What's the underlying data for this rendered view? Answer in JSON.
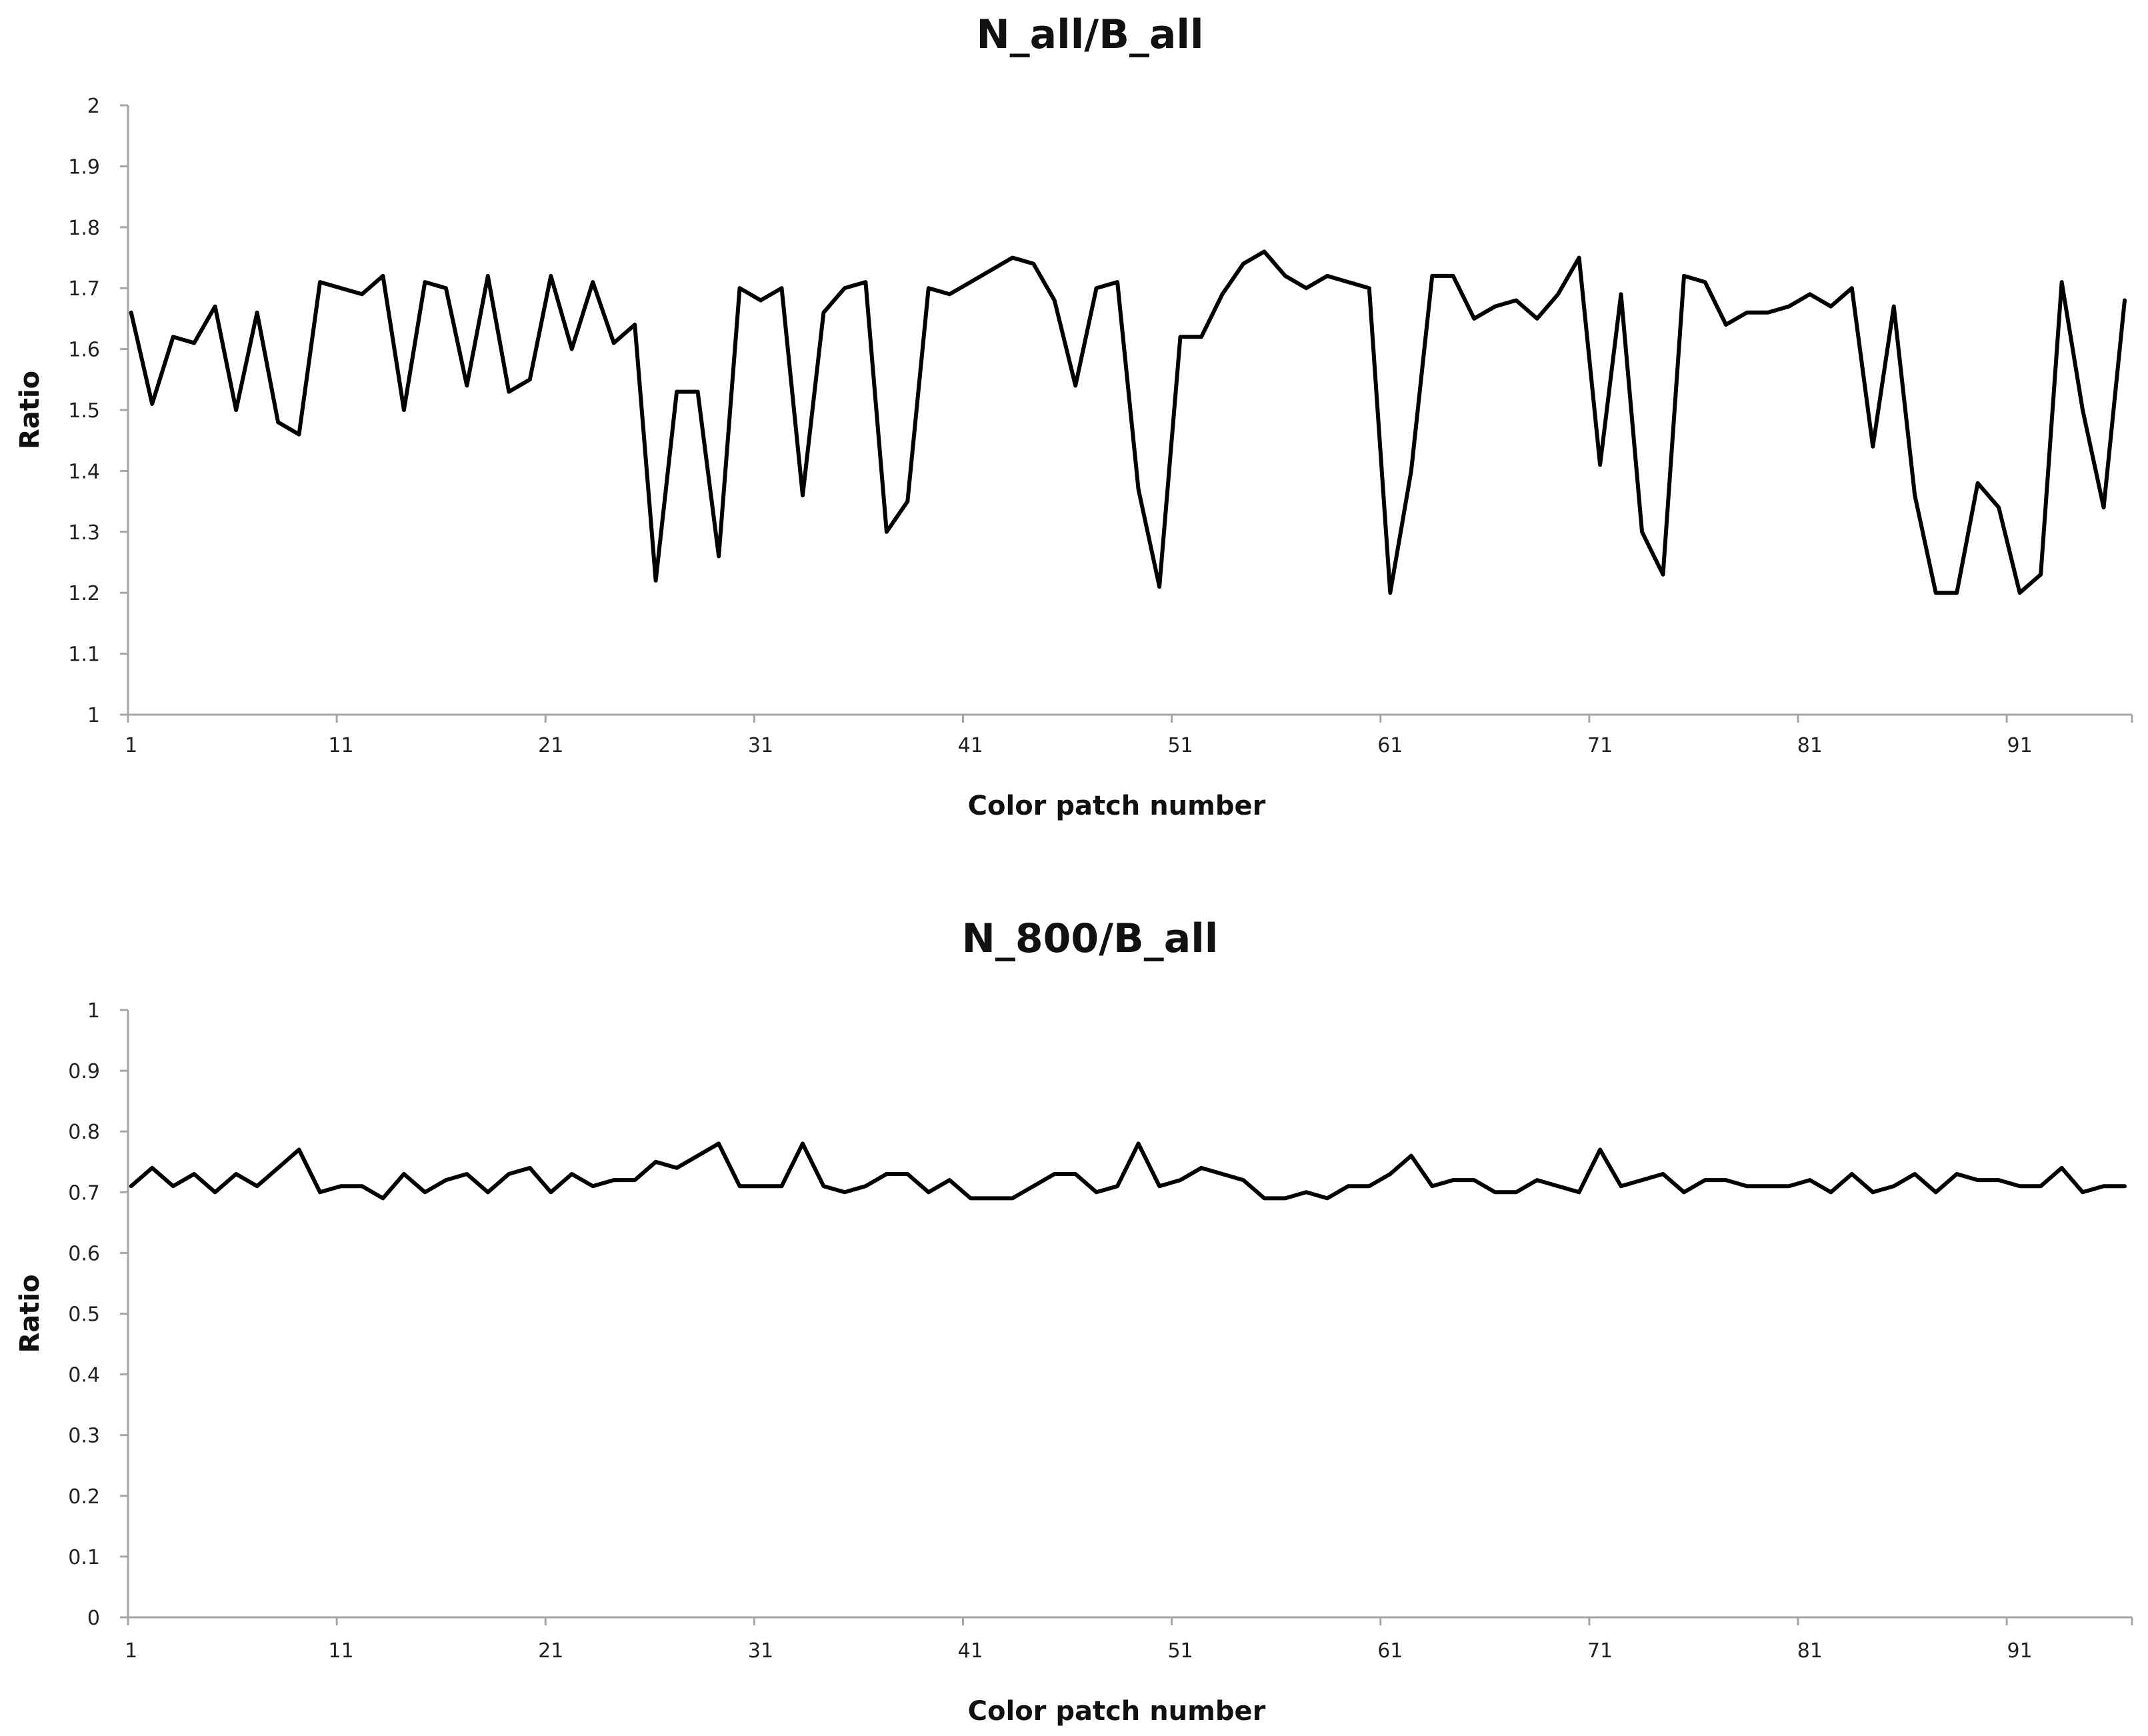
{
  "chart_data": [
    {
      "type": "line",
      "title": "N_all/B_all",
      "xlabel": "Color patch number",
      "ylabel": "Ratio",
      "ylim": [
        1,
        2
      ],
      "yticks": [
        "1",
        "1.1",
        "1.2",
        "1.3",
        "1.4",
        "1.5",
        "1.6",
        "1.7",
        "1.8",
        "1.9",
        "2"
      ],
      "xticks": [
        "1",
        "11",
        "21",
        "31",
        "41",
        "51",
        "61",
        "71",
        "81",
        "91"
      ],
      "grid": false,
      "line_color": "#000000",
      "x": [
        1,
        2,
        3,
        4,
        5,
        6,
        7,
        8,
        9,
        10,
        11,
        12,
        13,
        14,
        15,
        16,
        17,
        18,
        19,
        20,
        21,
        22,
        23,
        24,
        25,
        26,
        27,
        28,
        29,
        30,
        31,
        32,
        33,
        34,
        35,
        36,
        37,
        38,
        39,
        40,
        41,
        42,
        43,
        44,
        45,
        46,
        47,
        48,
        49,
        50,
        51,
        52,
        53,
        54,
        55,
        56,
        57,
        58,
        59,
        60,
        61,
        62,
        63,
        64,
        65,
        66,
        67,
        68,
        69,
        70,
        71,
        72,
        73,
        74,
        75,
        76,
        77,
        78,
        79,
        80,
        81,
        82,
        83,
        84,
        85,
        86,
        87,
        88,
        89,
        90,
        91,
        92,
        93,
        94,
        95,
        96
      ],
      "series": [
        {
          "values": [
            1.66,
            1.51,
            1.62,
            1.61,
            1.67,
            1.5,
            1.66,
            1.48,
            1.46,
            1.71,
            1.7,
            1.69,
            1.72,
            1.5,
            1.71,
            1.7,
            1.54,
            1.72,
            1.53,
            1.55,
            1.72,
            1.6,
            1.71,
            1.61,
            1.64,
            1.22,
            1.53,
            1.53,
            1.26,
            1.7,
            1.68,
            1.7,
            1.36,
            1.66,
            1.7,
            1.71,
            1.3,
            1.35,
            1.7,
            1.69,
            1.71,
            1.73,
            1.75,
            1.74,
            1.68,
            1.54,
            1.7,
            1.71,
            1.37,
            1.21,
            1.62,
            1.62,
            1.69,
            1.74,
            1.76,
            1.72,
            1.7,
            1.72,
            1.71,
            1.7,
            1.2,
            1.4,
            1.72,
            1.72,
            1.65,
            1.67,
            1.68,
            1.65,
            1.69,
            1.75,
            1.41,
            1.69,
            1.3,
            1.23,
            1.72,
            1.71,
            1.64,
            1.66,
            1.66,
            1.67,
            1.69,
            1.67,
            1.7,
            1.44,
            1.67,
            1.36,
            1.2,
            1.2,
            1.38,
            1.34,
            1.2,
            1.23,
            1.71,
            1.5,
            1.34,
            1.68
          ]
        }
      ]
    },
    {
      "type": "line",
      "title": "N_800/B_all",
      "xlabel": "Color patch number",
      "ylabel": "Ratio",
      "ylim": [
        0,
        1
      ],
      "yticks": [
        "0",
        "0.1",
        "0.2",
        "0.3",
        "0.4",
        "0.5",
        "0.6",
        "0.7",
        "0.8",
        "0.9",
        "1"
      ],
      "xticks": [
        "1",
        "11",
        "21",
        "31",
        "41",
        "51",
        "61",
        "71",
        "81",
        "91"
      ],
      "grid": false,
      "line_color": "#000000",
      "x": [
        1,
        2,
        3,
        4,
        5,
        6,
        7,
        8,
        9,
        10,
        11,
        12,
        13,
        14,
        15,
        16,
        17,
        18,
        19,
        20,
        21,
        22,
        23,
        24,
        25,
        26,
        27,
        28,
        29,
        30,
        31,
        32,
        33,
        34,
        35,
        36,
        37,
        38,
        39,
        40,
        41,
        42,
        43,
        44,
        45,
        46,
        47,
        48,
        49,
        50,
        51,
        52,
        53,
        54,
        55,
        56,
        57,
        58,
        59,
        60,
        61,
        62,
        63,
        64,
        65,
        66,
        67,
        68,
        69,
        70,
        71,
        72,
        73,
        74,
        75,
        76,
        77,
        78,
        79,
        80,
        81,
        82,
        83,
        84,
        85,
        86,
        87,
        88,
        89,
        90,
        91,
        92,
        93,
        94,
        95,
        96
      ],
      "series": [
        {
          "values": [
            0.71,
            0.74,
            0.71,
            0.73,
            0.7,
            0.73,
            0.71,
            0.74,
            0.77,
            0.7,
            0.71,
            0.71,
            0.69,
            0.73,
            0.7,
            0.72,
            0.73,
            0.7,
            0.73,
            0.74,
            0.7,
            0.73,
            0.71,
            0.72,
            0.72,
            0.75,
            0.74,
            0.76,
            0.78,
            0.71,
            0.71,
            0.71,
            0.78,
            0.71,
            0.7,
            0.71,
            0.73,
            0.73,
            0.7,
            0.72,
            0.69,
            0.69,
            0.69,
            0.71,
            0.73,
            0.73,
            0.7,
            0.71,
            0.78,
            0.71,
            0.72,
            0.74,
            0.73,
            0.72,
            0.69,
            0.69,
            0.7,
            0.69,
            0.71,
            0.71,
            0.73,
            0.76,
            0.71,
            0.72,
            0.72,
            0.7,
            0.7,
            0.72,
            0.71,
            0.7,
            0.77,
            0.71,
            0.72,
            0.73,
            0.7,
            0.72,
            0.72,
            0.71,
            0.71,
            0.71,
            0.72,
            0.7,
            0.73,
            0.7,
            0.71,
            0.73,
            0.7,
            0.73,
            0.72,
            0.72,
            0.71,
            0.71,
            0.74,
            0.7,
            0.71,
            0.71
          ]
        }
      ]
    }
  ]
}
